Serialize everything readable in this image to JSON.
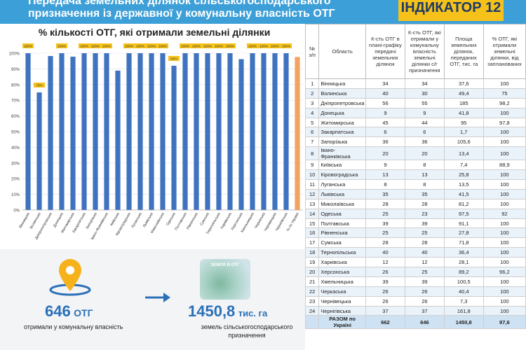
{
  "header": {
    "line1": "Передача земельних ділянок сільськогосподарського",
    "line2": "призначення із  державної у комунальну власність ОТГ",
    "indicator": "ІНДИКАТОР 12"
  },
  "chart_data": {
    "type": "bar",
    "title": "% кількості ОТГ, які отримали земельні ділянки",
    "categories": [
      "Вінницька",
      "Волинська",
      "Дніпропетровська",
      "Донецька",
      "Житомирська",
      "Закарпатська",
      "Запорізька",
      "Івано-Франківська",
      "Київська",
      "Кіровоградська",
      "Луганська",
      "Львівська",
      "Миколаївська",
      "Одеська",
      "Полтавська",
      "Рівненська",
      "Сумська",
      "Тернопільська",
      "Харківська",
      "Херсонська",
      "Хмельницька",
      "Черкаська",
      "Чернівецька",
      "Чернігівська",
      "% по Україні"
    ],
    "values": [
      100,
      75,
      98.2,
      100,
      97.8,
      100,
      100,
      100,
      88.9,
      100,
      100,
      100,
      100,
      92,
      100,
      100,
      100,
      100,
      100,
      96.2,
      100,
      100,
      100,
      100,
      97.6
    ],
    "data_labels": [
      "100%",
      "75%",
      "",
      "100%",
      "",
      "100%",
      "100%",
      "100%",
      "",
      "100%",
      "100%",
      "100%",
      "100%",
      "92%",
      "100%",
      "100%",
      "100%",
      "100%",
      "100%",
      "",
      "100%",
      "100%",
      "100%",
      "100%",
      ""
    ],
    "yticks": [
      "0%",
      "10%",
      "20%",
      "30%",
      "40%",
      "50%",
      "60%",
      "70%",
      "80%",
      "90%",
      "100%"
    ],
    "ylim": [
      0,
      100
    ],
    "colors": {
      "bar": "#3f73c0",
      "highlight": "#f4a261",
      "label_bg": "#f6c21a"
    }
  },
  "stats": {
    "otg_value": "646",
    "otg_unit": "ОТГ",
    "otg_caption": "отримали у комунальну  власність",
    "area_value": "1450,8",
    "area_unit": "тис. га",
    "area_caption_1": "земель сільськогосподарського",
    "area_caption_2": "призначення",
    "land_badge": "ЗЕМЛЯ В ОТГ"
  },
  "table": {
    "headers": [
      "№ з/п",
      "Область",
      "К-сть ОТГ в плані-графіку передачі земельних ділянок",
      "К-сть ОТГ, які отримали у комунальну власність земельні ділянки с/г призначення",
      "Площа земельних ділянок, переданих ОТГ, тис. га",
      "% ОТГ, які отримали земельні ділянки, від запланованих"
    ],
    "rows": [
      [
        "1",
        "Вінницька",
        "34",
        "34",
        "37,6",
        "100"
      ],
      [
        "2",
        "Волинська",
        "40",
        "30",
        "49,4",
        "75"
      ],
      [
        "3",
        "Дніпропетровська",
        "56",
        "55",
        "185",
        "98,2"
      ],
      [
        "4",
        "Донецька",
        "9",
        "9",
        "41,8",
        "100"
      ],
      [
        "5",
        "Житомирська",
        "45",
        "44",
        "95",
        "97,8"
      ],
      [
        "6",
        "Закарпатська",
        "6",
        "6",
        "1,7",
        "100"
      ],
      [
        "7",
        "Запорізька",
        "36",
        "36",
        "105,6",
        "100"
      ],
      [
        "8",
        "Івано-Франківська",
        "20",
        "20",
        "13,4",
        "100"
      ],
      [
        "9",
        "Київська",
        "9",
        "8",
        "7,4",
        "88,9"
      ],
      [
        "10",
        "Кіровоградська",
        "13",
        "13",
        "25,8",
        "100"
      ],
      [
        "11",
        "Луганська",
        "8",
        "8",
        "13,5",
        "100"
      ],
      [
        "12",
        "Львівська",
        "35",
        "35",
        "41,5",
        "100"
      ],
      [
        "13",
        "Миколаївська",
        "28",
        "28",
        "81,2",
        "100"
      ],
      [
        "14",
        "Одеська",
        "25",
        "23",
        "97,5",
        "92"
      ],
      [
        "15",
        "Полтавська",
        "39",
        "39",
        "91,1",
        "100"
      ],
      [
        "16",
        "Рівненська",
        "25",
        "25",
        "27,8",
        "100"
      ],
      [
        "17",
        "Сумська",
        "28",
        "28",
        "71,8",
        "100"
      ],
      [
        "18",
        "Тернопільська",
        "40",
        "40",
        "36,4",
        "100"
      ],
      [
        "19",
        "Харківська",
        "12",
        "12",
        "28,1",
        "100"
      ],
      [
        "20",
        "Херсонська",
        "26",
        "25",
        "89,2",
        "96,2"
      ],
      [
        "21",
        "Хмельницька",
        "39",
        "39",
        "100,5",
        "100"
      ],
      [
        "22",
        "Черкаська",
        "26",
        "26",
        "40,4",
        "100"
      ],
      [
        "23",
        "Чернівецька",
        "26",
        "26",
        "7,3",
        "100"
      ],
      [
        "24",
        "Чернігівська",
        "37",
        "37",
        "161,8",
        "100"
      ]
    ],
    "total": [
      "",
      "РАЗОМ по Україні",
      "662",
      "646",
      "1450,8",
      "97,6"
    ]
  }
}
